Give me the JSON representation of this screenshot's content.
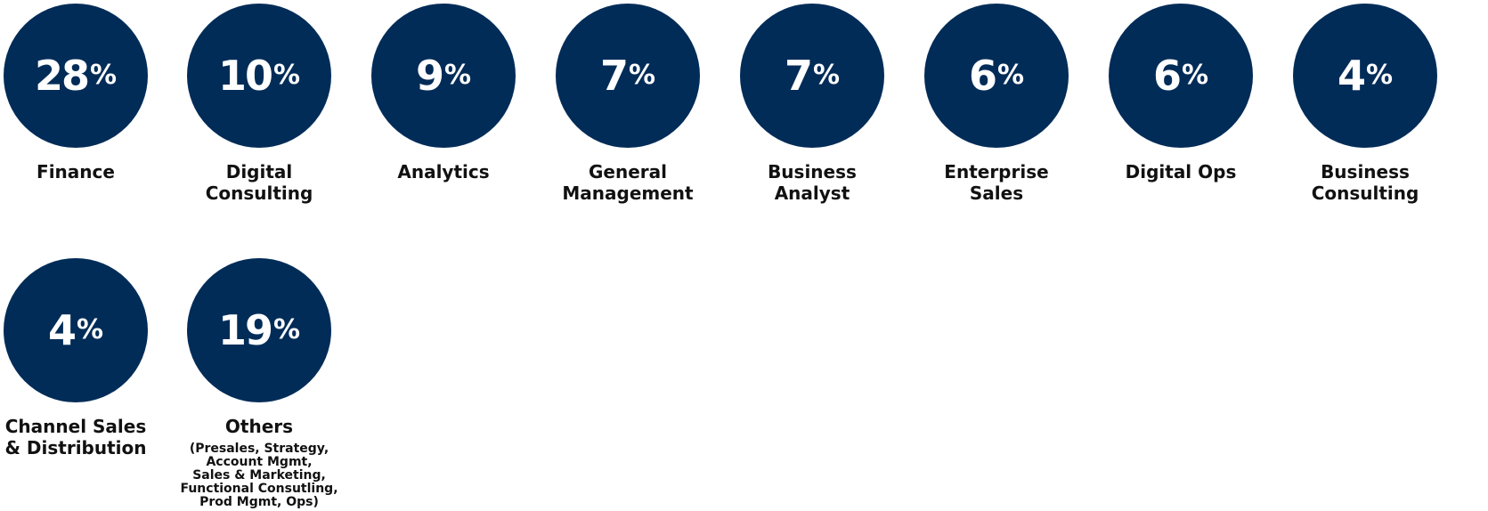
{
  "colors": {
    "circle": "#022c58",
    "text": "#111111",
    "circle_text": "#ffffff"
  },
  "items": [
    {
      "value": "28",
      "percent": "%",
      "label": "Finance"
    },
    {
      "value": "10",
      "percent": "%",
      "label": "Digital\nConsulting"
    },
    {
      "value": "9",
      "percent": "%",
      "label": "Analytics"
    },
    {
      "value": "7",
      "percent": "%",
      "label": "General\nManagement"
    },
    {
      "value": "7",
      "percent": "%",
      "label": "Business\nAnalyst"
    },
    {
      "value": "6",
      "percent": "%",
      "label": "Enterprise\nSales"
    },
    {
      "value": "6",
      "percent": "%",
      "label": "Digital Ops"
    },
    {
      "value": "4",
      "percent": "%",
      "label": "Business\nConsulting"
    },
    {
      "value": "4",
      "percent": "%",
      "label": "Channel Sales\n& Distribution"
    },
    {
      "value": "19",
      "percent": "%",
      "label": "Others",
      "sublabel": "(Presales, Strategy,\nAccount Mgmt,\nSales & Marketing,\nFunctional Consutling,\nProd Mgmt, Ops)"
    }
  ]
}
